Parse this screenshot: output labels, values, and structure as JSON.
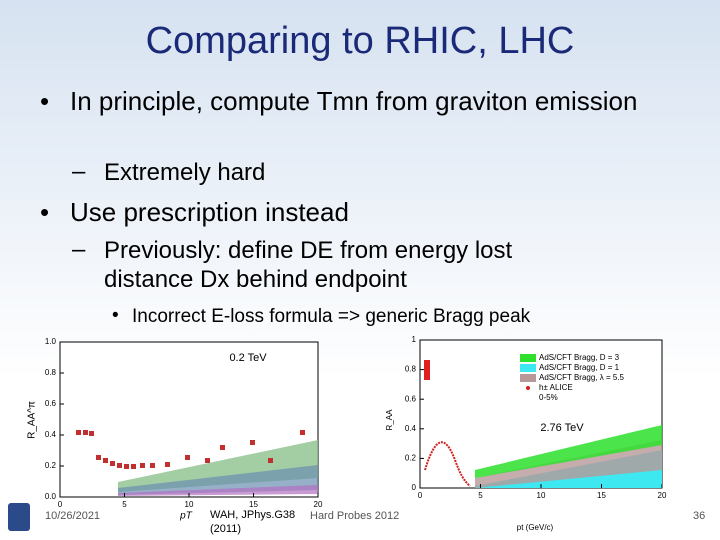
{
  "title": "Comparing to RHIC, LHC",
  "bullets": [
    {
      "level": 1,
      "text": "In principle, compute Tmn from graviton emission"
    },
    {
      "level": 2,
      "text": "Extremely hard"
    },
    {
      "level": 1,
      "text": "Use prescription instead"
    },
    {
      "level": 2,
      "text": "Previously: define DE from energy lost distance Dx behind endpoint"
    },
    {
      "level": 3,
      "text": "Incorrect E-loss formula => generic Bragg peak"
    }
  ],
  "left_plot": {
    "annotation": "0.2 TeV",
    "ylabel": "R_AA^π",
    "xlabel": "pT",
    "yticks": [
      "0.0",
      "0.2",
      "0.4",
      "0.6",
      "0.8",
      "1.0"
    ],
    "xticks": [
      "0",
      "5",
      "10",
      "15",
      "20"
    ]
  },
  "right_plot": {
    "annotation": "2.76 TeV",
    "ylabel": "R_AA",
    "xlabel": "pt (GeV/c)",
    "yticks": [
      "0",
      "0.2",
      "0.4",
      "0.6",
      "0.8",
      "1"
    ],
    "xticks": [
      "0",
      "5",
      "10",
      "15",
      "20"
    ],
    "legend": [
      "AdS/CFT Bragg, D = 3",
      "AdS/CFT Bragg, D = 1",
      "AdS/CFT Bragg, λ = 5.5",
      "h± ALICE",
      "0-5%"
    ]
  },
  "footer": {
    "date": "10/26/2021",
    "citation": "WAH, JPhys.G38 (2011)",
    "event": "Hard Probes 2012",
    "page": "36"
  }
}
